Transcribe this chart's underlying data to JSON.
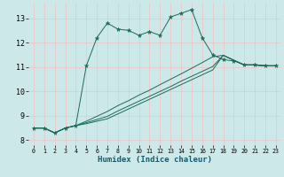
{
  "xlabel": "Humidex (Indice chaleur)",
  "bg_color": "#cde8e8",
  "grid_color": "#e8c8c8",
  "line_color": "#1a6b5a",
  "xlim": [
    -0.5,
    23.5
  ],
  "ylim": [
    7.8,
    13.6
  ],
  "yticks": [
    8,
    9,
    10,
    11,
    12,
    13
  ],
  "xticks": [
    0,
    1,
    2,
    3,
    4,
    5,
    6,
    7,
    8,
    9,
    10,
    11,
    12,
    13,
    14,
    15,
    16,
    17,
    18,
    19,
    20,
    21,
    22,
    23
  ],
  "main_x": [
    0,
    1,
    2,
    3,
    4,
    5,
    6,
    7,
    8,
    9,
    10,
    11,
    12,
    13,
    14,
    15,
    16,
    17,
    18,
    19,
    20,
    21,
    22,
    23
  ],
  "main_y": [
    8.5,
    8.5,
    8.3,
    8.5,
    8.6,
    11.05,
    12.2,
    12.8,
    12.55,
    12.5,
    12.3,
    12.45,
    12.3,
    13.05,
    13.2,
    13.35,
    12.2,
    11.5,
    11.3,
    11.25,
    11.1,
    11.1,
    11.05,
    11.05
  ],
  "line2_x": [
    0,
    1,
    2,
    3,
    4,
    5,
    6,
    7,
    8,
    9,
    10,
    11,
    12,
    13,
    14,
    15,
    16,
    17,
    18,
    19,
    20,
    21,
    22,
    23
  ],
  "line2_y": [
    8.5,
    8.5,
    8.3,
    8.5,
    8.6,
    8.78,
    8.98,
    9.18,
    9.42,
    9.62,
    9.85,
    10.05,
    10.28,
    10.5,
    10.72,
    10.95,
    11.18,
    11.42,
    11.48,
    11.28,
    11.08,
    11.08,
    11.05,
    11.05
  ],
  "line3_x": [
    0,
    1,
    2,
    3,
    4,
    5,
    6,
    7,
    8,
    9,
    10,
    11,
    12,
    13,
    14,
    15,
    16,
    17,
    18,
    19,
    20,
    21,
    22,
    23
  ],
  "line3_y": [
    8.5,
    8.5,
    8.3,
    8.5,
    8.6,
    8.72,
    8.85,
    8.98,
    9.2,
    9.4,
    9.6,
    9.8,
    10.0,
    10.2,
    10.42,
    10.62,
    10.82,
    11.02,
    11.48,
    11.28,
    11.08,
    11.08,
    11.05,
    11.05
  ],
  "line4_x": [
    0,
    1,
    2,
    3,
    4,
    5,
    6,
    7,
    8,
    9,
    10,
    11,
    12,
    13,
    14,
    15,
    16,
    17,
    18,
    19,
    20,
    21,
    22,
    23
  ],
  "line4_y": [
    8.5,
    8.5,
    8.3,
    8.5,
    8.6,
    8.68,
    8.78,
    8.88,
    9.08,
    9.28,
    9.48,
    9.68,
    9.88,
    10.08,
    10.28,
    10.48,
    10.68,
    10.88,
    11.48,
    11.28,
    11.08,
    11.08,
    11.05,
    11.05
  ]
}
